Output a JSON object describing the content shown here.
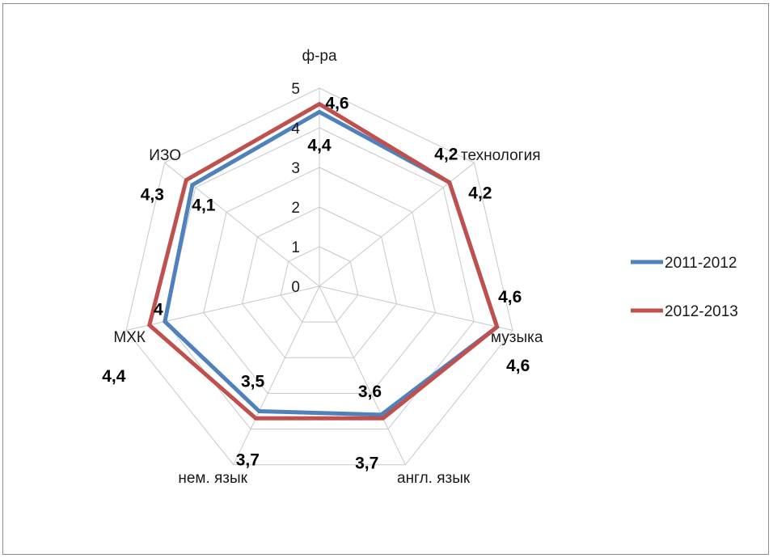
{
  "chart_data": {
    "type": "radar",
    "categories": [
      "ф-ра",
      "технология",
      "музыка",
      "англ. язык",
      "нем. язык",
      "МХК",
      "ИЗО"
    ],
    "rlim": [
      0,
      5
    ],
    "ticks": [
      "0",
      "1",
      "2",
      "3",
      "4",
      "5"
    ],
    "grid": true,
    "legend_position": "right",
    "series": [
      {
        "name": "2011-2012",
        "color": "#4f81bd",
        "values": [
          4.4,
          4.2,
          4.6,
          3.6,
          3.5,
          4,
          4.1
        ],
        "labels": [
          "4,4",
          "4,2",
          "4,6",
          "3,6",
          "3,5",
          "4",
          "4,1"
        ]
      },
      {
        "name": "2012-2013",
        "color": "#c0504d",
        "values": [
          4.6,
          4.2,
          4.6,
          3.7,
          3.7,
          4.4,
          4.3
        ],
        "labels": [
          "4,6",
          "4,2",
          "4,6",
          "3,7",
          "3,7",
          "4,4",
          "4,3"
        ]
      }
    ]
  }
}
